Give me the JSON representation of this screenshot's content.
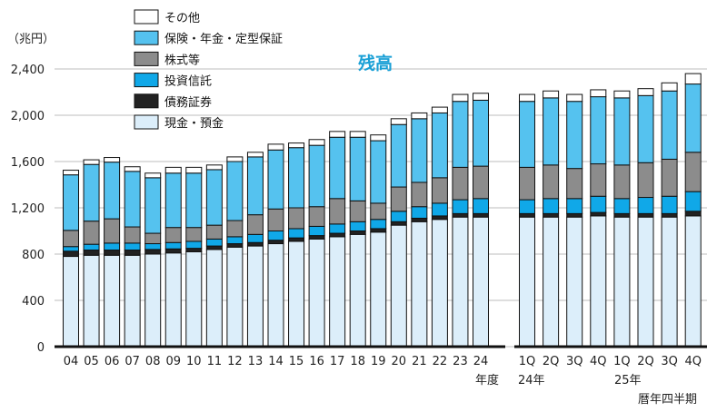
{
  "chart_data": {
    "type": "bar",
    "stacked": true,
    "title": "残高",
    "ylabel": "（兆円）",
    "ylim": [
      0,
      2400
    ],
    "yticks": [
      "0",
      "400",
      "800",
      "1,200",
      "1,600",
      "2,000",
      "2,400"
    ],
    "x_sublabels": {
      "fiscal": "年度",
      "q24": "24年",
      "q25": "25年",
      "quarterly": "暦年四半期"
    },
    "legend": [
      "その他",
      "保険・年金・定型保証",
      "株式等",
      "投資信託",
      "債務証券",
      "現金・預金"
    ],
    "colors": {
      "現金・預金": "#dceefa",
      "債務証券": "#222222",
      "投資信託": "#10a8e8",
      "株式等": "#8c8c8c",
      "保険・年金・定型保証": "#55c2ef",
      "その他": "#ffffff"
    },
    "categories": [
      "04",
      "05",
      "06",
      "07",
      "08",
      "09",
      "10",
      "11",
      "12",
      "13",
      "14",
      "15",
      "16",
      "17",
      "18",
      "19",
      "20",
      "21",
      "22",
      "23",
      "24",
      "1Q",
      "2Q",
      "3Q",
      "4Q",
      "1Q",
      "2Q",
      "3Q",
      "4Q"
    ],
    "series": [
      {
        "name": "現金・預金",
        "values": [
          780,
          790,
          790,
          790,
          800,
          810,
          820,
          840,
          860,
          870,
          890,
          910,
          930,
          950,
          970,
          990,
          1050,
          1080,
          1100,
          1120,
          1120,
          1120,
          1120,
          1120,
          1130,
          1120,
          1120,
          1120,
          1130
        ]
      },
      {
        "name": "債務証券",
        "values": [
          45,
          45,
          45,
          45,
          40,
          35,
          30,
          30,
          30,
          30,
          30,
          30,
          30,
          30,
          30,
          30,
          30,
          30,
          30,
          30,
          30,
          30,
          30,
          30,
          30,
          30,
          30,
          30,
          40
        ]
      },
      {
        "name": "投資信託",
        "values": [
          40,
          50,
          60,
          60,
          50,
          55,
          60,
          60,
          60,
          70,
          80,
          80,
          80,
          80,
          80,
          80,
          90,
          100,
          110,
          120,
          130,
          120,
          130,
          130,
          140,
          130,
          140,
          150,
          170
        ]
      },
      {
        "name": "株式等",
        "values": [
          140,
          200,
          210,
          140,
          90,
          130,
          120,
          120,
          140,
          170,
          190,
          180,
          170,
          220,
          180,
          140,
          210,
          210,
          220,
          280,
          280,
          280,
          290,
          260,
          280,
          290,
          300,
          320,
          340
        ]
      },
      {
        "name": "保険・年金・定型保証",
        "values": [
          480,
          490,
          490,
          480,
          480,
          470,
          470,
          480,
          510,
          500,
          510,
          520,
          530,
          530,
          550,
          540,
          540,
          550,
          560,
          570,
          570,
          570,
          580,
          580,
          580,
          580,
          580,
          590,
          590
        ]
      },
      {
        "name": "その他",
        "values": [
          40,
          40,
          40,
          40,
          40,
          50,
          50,
          40,
          40,
          40,
          50,
          40,
          50,
          50,
          50,
          50,
          50,
          50,
          50,
          60,
          60,
          60,
          60,
          60,
          60,
          60,
          60,
          70,
          90
        ]
      }
    ]
  }
}
